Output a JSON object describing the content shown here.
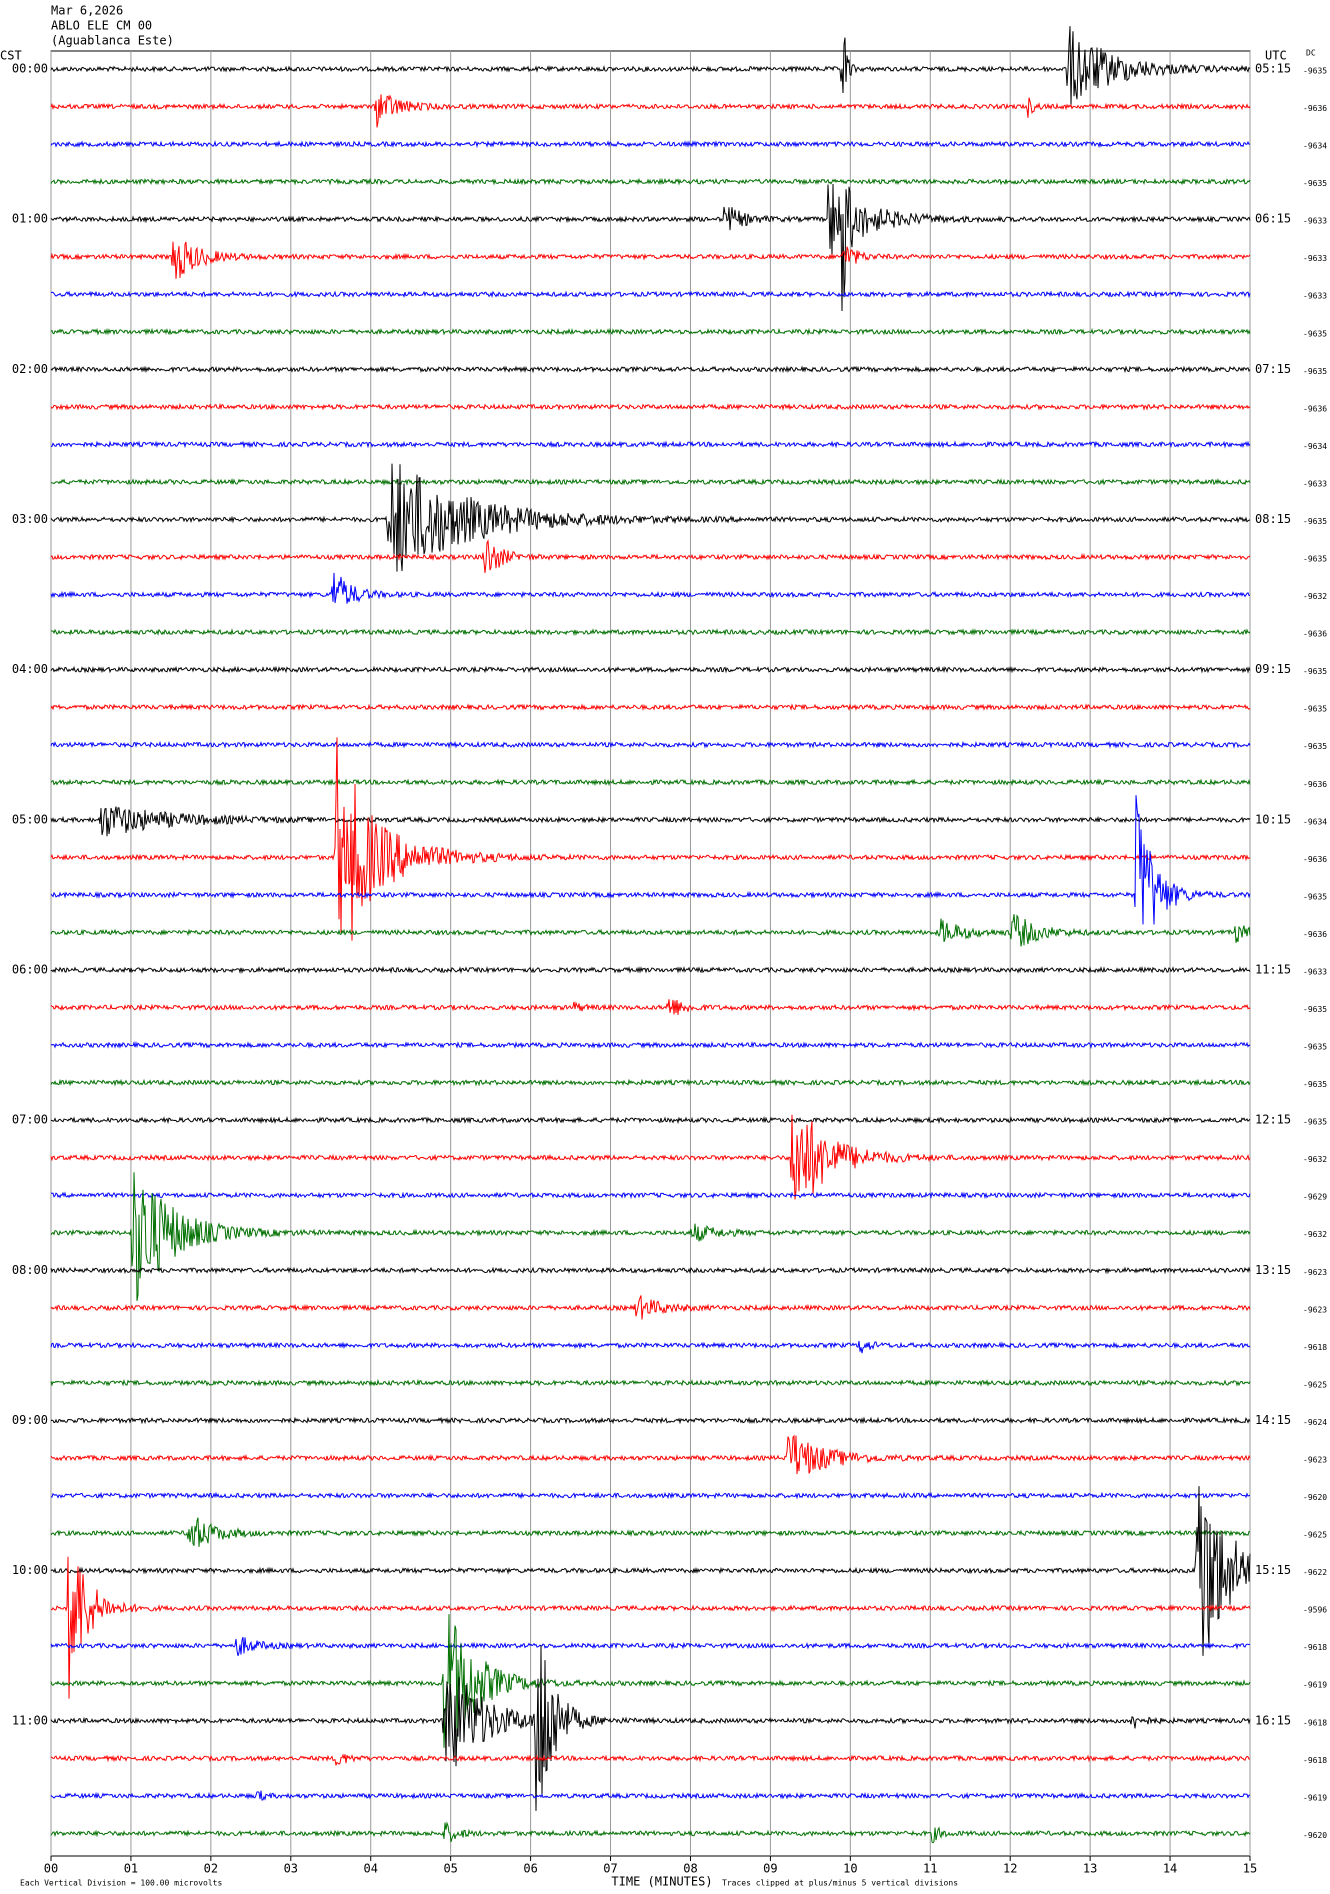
{
  "chart_data": {
    "type": "helicorder",
    "header": [
      "Mar 6,2026",
      "ABLO ELE CM 00",
      "(Aguablanca Este)"
    ],
    "left_axis_label": "CST",
    "right_axis_label": "UTC",
    "dc_label": "DC",
    "cst_labels": [
      "00:00",
      "01:00",
      "02:00",
      "03:00",
      "04:00",
      "05:00",
      "06:00",
      "07:00",
      "08:00",
      "09:00",
      "10:00",
      "11:00"
    ],
    "utc_labels": [
      "05:15",
      "06:15",
      "07:15",
      "08:15",
      "09:15",
      "10:15",
      "11:15",
      "12:15",
      "13:15",
      "14:15",
      "15:15",
      "16:15"
    ],
    "dc_values": [
      -9635,
      -9636,
      -9634,
      -9635,
      -9633,
      -9633,
      -9633,
      -9635,
      -9635,
      -9636,
      -9634,
      -9633,
      -9635,
      -9635,
      -9632,
      -9636,
      -9635,
      -9635,
      -9635,
      -9636,
      -9634,
      -9636,
      -9635,
      -9636,
      -9633,
      -9635,
      -9635,
      -9635,
      -9635,
      -9632,
      -9629,
      -9632,
      -9623,
      -9623,
      -9618,
      -9625,
      -9624,
      -9623,
      -9620,
      -9625,
      -9622,
      -9596,
      -9618,
      -9619,
      -9618,
      -9618,
      -9619,
      -9620
    ],
    "trace_colors": [
      "#000000",
      "#ff0000",
      "#0000ff",
      "#007000"
    ],
    "xlabel": "TIME (MINUTES)",
    "xlim": [
      0,
      15
    ],
    "xticks": [
      {
        "value": 0,
        "label": "00"
      },
      {
        "value": 1,
        "label": "01"
      },
      {
        "value": 2,
        "label": "02"
      },
      {
        "value": 3,
        "label": "03"
      },
      {
        "value": 4,
        "label": "04"
      },
      {
        "value": 5,
        "label": "05"
      },
      {
        "value": 6,
        "label": "06"
      },
      {
        "value": 7,
        "label": "07"
      },
      {
        "value": 8,
        "label": "08"
      },
      {
        "value": 9,
        "label": "09"
      },
      {
        "value": 10,
        "label": "10"
      },
      {
        "value": 11,
        "label": "11"
      },
      {
        "value": 12,
        "label": "12"
      },
      {
        "value": 13,
        "label": "13"
      },
      {
        "value": 14,
        "label": "14"
      },
      {
        "value": 15,
        "label": "15"
      }
    ],
    "grid": true,
    "footnote_left": "Each Vertical Division =  100.00 microvolts",
    "footnote_right": "Traces clipped at plus/minus 5 vertical divisions"
  }
}
